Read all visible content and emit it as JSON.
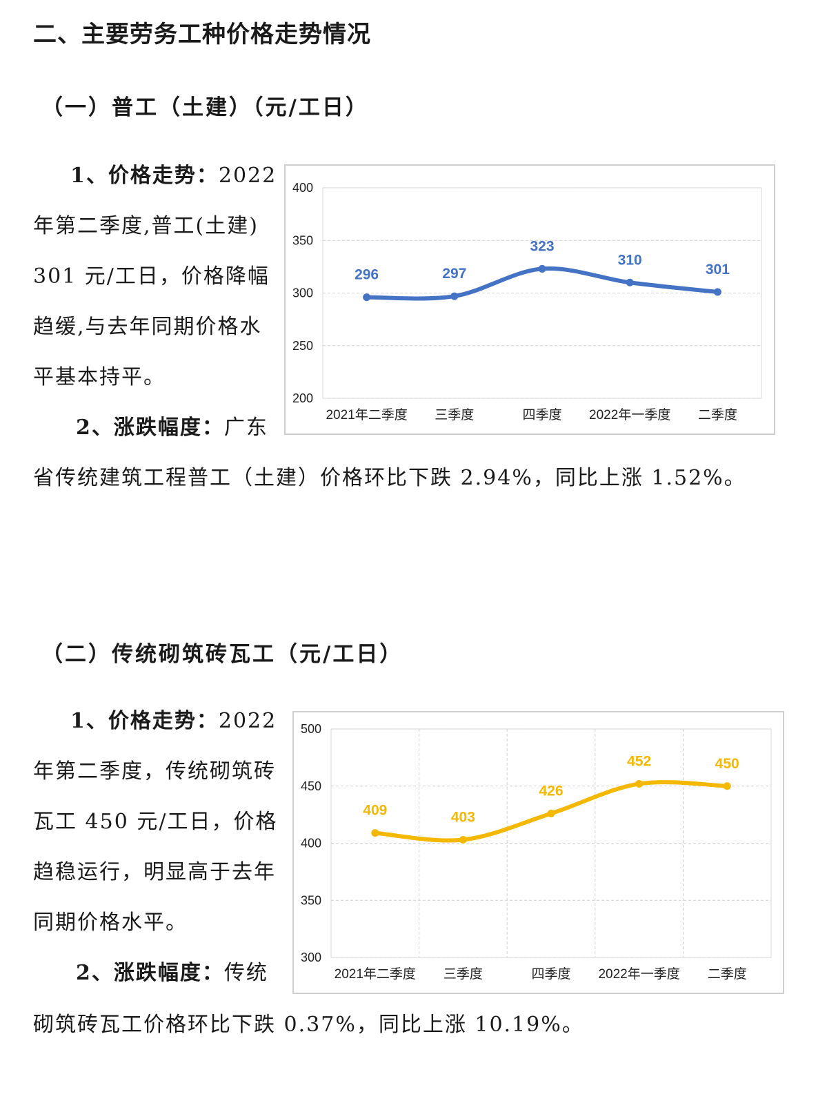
{
  "page_title": "二、主要劳务工种价格走势情况",
  "section1": {
    "heading": "（一）普工（土建）（元/工日）",
    "trend_label": "1、价格走势：",
    "trend_lines": [
      "2022",
      "年第二季度,普工(土建)",
      "301 元/工日，价格降幅",
      "趋缓,与去年同期价格水",
      "平基本持平。"
    ],
    "change_label": "2、涨跌幅度：",
    "change_lines": [
      "广东",
      "省传统建筑工程普工（土建）价格环比下跌 2.94%，同比上涨 1.52%。"
    ]
  },
  "section2": {
    "heading": "（二）传统砌筑砖瓦工（元/工日）",
    "trend_label": "1、价格走势：",
    "trend_lines": [
      "2022",
      "年第二季度，传统砌筑砖",
      "瓦工 450 元/工日，价格",
      "趋稳运行，明显高于去年",
      "同期价格水平。"
    ],
    "change_label": "2、涨跌幅度：",
    "change_lines": [
      "传统",
      "砌筑砖瓦工价格环比下跌 0.37%，同比上涨 10.19%。"
    ]
  },
  "chart_data": [
    {
      "type": "line",
      "categories": [
        "2021年二季度",
        "三季度",
        "四季度",
        "2022年一季度",
        "二季度"
      ],
      "values": [
        296,
        297,
        323,
        310,
        301
      ],
      "ylim": [
        200,
        400
      ],
      "yticks": [
        "400",
        "350",
        "300",
        "250",
        "200"
      ],
      "color": "#4472c4",
      "grid": "horizontal",
      "data_labels": [
        "296",
        "297",
        "323",
        "310",
        "301"
      ]
    },
    {
      "type": "line",
      "categories": [
        "2021年二季度",
        "三季度",
        "四季度",
        "2022年一季度",
        "二季度"
      ],
      "values": [
        409,
        403,
        426,
        452,
        450
      ],
      "ylim": [
        300,
        500
      ],
      "yticks": [
        "500",
        "450",
        "400",
        "350",
        "300"
      ],
      "color": "#f5b800",
      "grid": "both",
      "data_labels": [
        "409",
        "403",
        "426",
        "452",
        "450"
      ]
    }
  ]
}
